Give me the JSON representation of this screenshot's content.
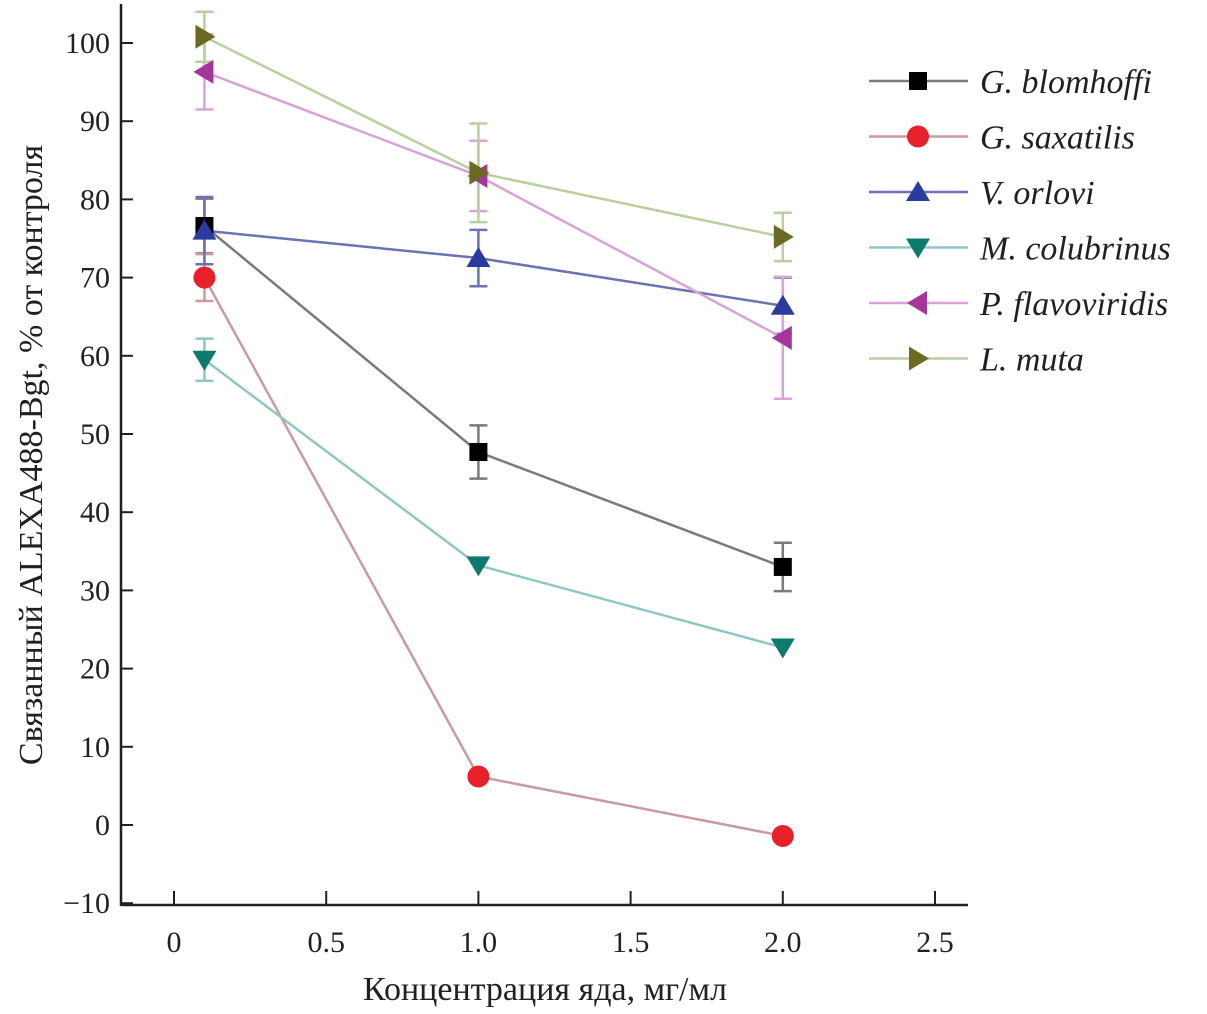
{
  "chart_data": {
    "type": "line",
    "title": "",
    "xlabel": "Концентрация яда, мг/мл",
    "ylabel": "Связанный ALEXA488-Bgt, % от контроля",
    "xlim": [
      0,
      2.5
    ],
    "ylim": [
      -10,
      100
    ],
    "xticks": [
      0,
      0.5,
      1.0,
      1.5,
      2.0,
      2.5
    ],
    "xtick_labels": [
      "0",
      "0.5",
      "1.0",
      "1.5",
      "2.0",
      "2.5"
    ],
    "yticks": [
      -10,
      0,
      10,
      20,
      30,
      40,
      50,
      60,
      70,
      80,
      90,
      100
    ],
    "ytick_labels": [
      "−10",
      "0",
      "10",
      "20",
      "30",
      "40",
      "50",
      "60",
      "70",
      "80",
      "90",
      "100"
    ],
    "grid": false,
    "legend_position": "top-right",
    "x": [
      0.1,
      1.0,
      2.0
    ],
    "series": [
      {
        "name": "G. blomhoffi",
        "marker": "square",
        "color": "#000000",
        "line_color": "#7a7a7a",
        "values": [
          76.6,
          47.7,
          33.0
        ],
        "errors": [
          3.5,
          3.4,
          3.1
        ]
      },
      {
        "name": "G. saxatilis",
        "marker": "circle",
        "color": "#e8202a",
        "line_color": "#c99a9e",
        "values": [
          70.0,
          6.2,
          -1.4
        ],
        "errors": [
          3.0,
          0,
          0
        ]
      },
      {
        "name": "V. orlovi",
        "marker": "triangle-up",
        "color": "#2b3a9e",
        "line_color": "#6b73b3",
        "values": [
          76.0,
          72.5,
          66.4
        ],
        "errors": [
          4.3,
          3.6,
          3.6
        ]
      },
      {
        "name": "M. colubrinus",
        "marker": "triangle-down",
        "color": "#0e7a6e",
        "line_color": "#8fc6c4",
        "values": [
          59.5,
          33.2,
          22.7
        ],
        "errors": [
          2.7,
          0,
          0
        ]
      },
      {
        "name": "P. flavoviridis",
        "marker": "triangle-left",
        "color": "#a4359b",
        "line_color": "#d7a3d6",
        "values": [
          96.3,
          83.0,
          62.3
        ],
        "errors": [
          4.8,
          4.5,
          7.8
        ]
      },
      {
        "name": "L. muta",
        "marker": "triangle-right",
        "color": "#6b6a23",
        "line_color": "#b8cfa0",
        "values": [
          100.8,
          83.4,
          75.2
        ],
        "errors": [
          3.2,
          6.3,
          3.1
        ]
      }
    ]
  }
}
